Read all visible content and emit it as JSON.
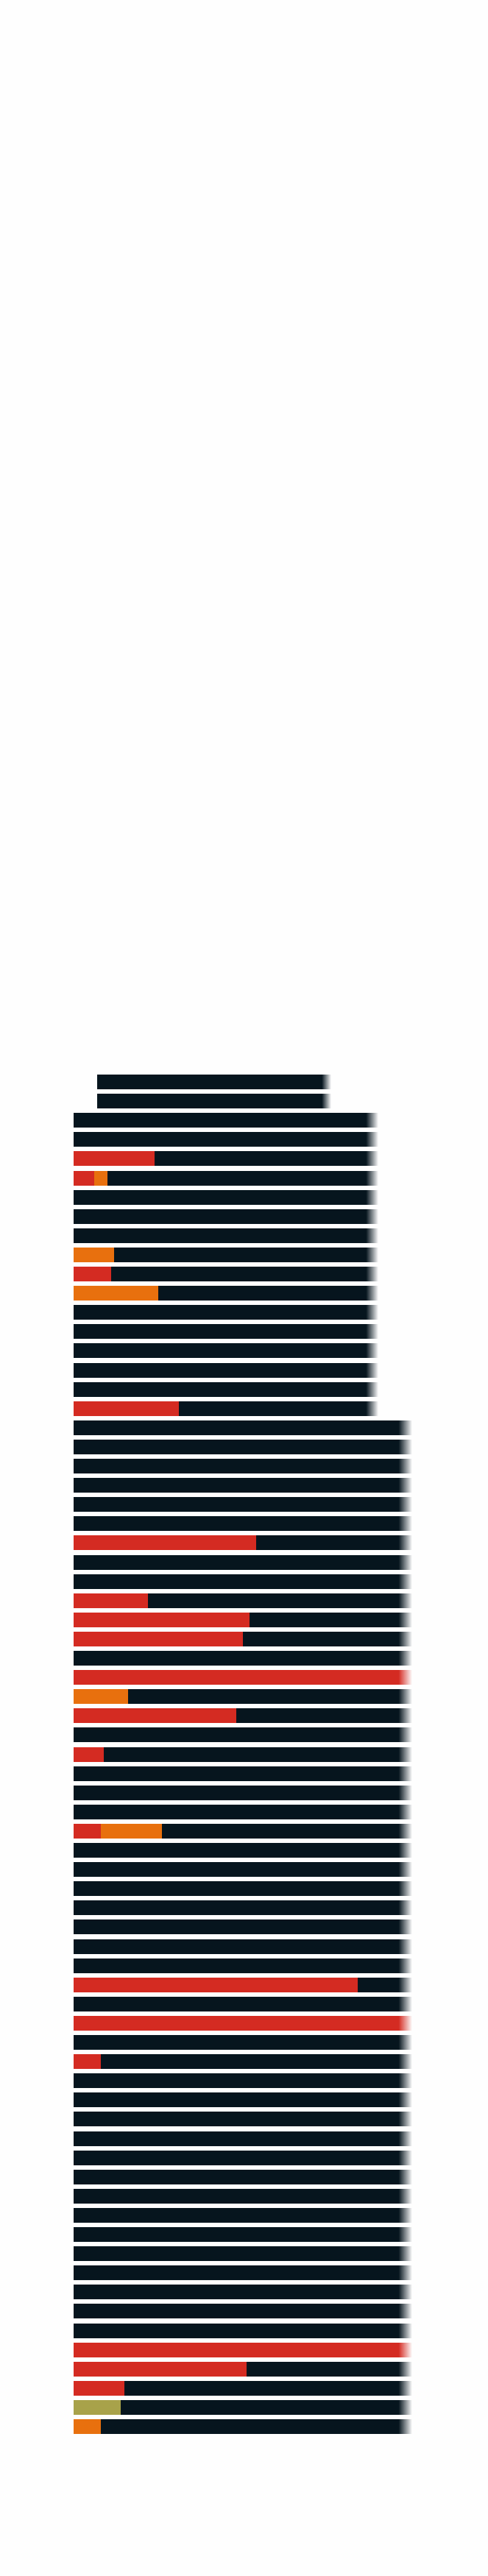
{
  "chart_data": {
    "type": "bar",
    "orientation": "horizontal",
    "stacked": true,
    "grid": false,
    "legend": "none",
    "colors": {
      "background": "#fefefe",
      "base": "#06151e",
      "red": "#d42b22",
      "orange": "#e8700e",
      "olive": "#a8a24a"
    },
    "series_colors": [
      "red",
      "orange",
      "olive"
    ],
    "xlim": [
      0,
      100
    ],
    "rows": [
      {
        "total": 76,
        "offset": 7,
        "segments": []
      },
      {
        "total": 76,
        "offset": 7,
        "segments": []
      },
      {
        "total": 90,
        "offset": 0,
        "segments": []
      },
      {
        "total": 90,
        "offset": 0,
        "segments": []
      },
      {
        "total": 90,
        "offset": 0,
        "segments": [
          {
            "color": "red",
            "value": 24
          }
        ]
      },
      {
        "total": 90,
        "offset": 0,
        "segments": [
          {
            "color": "red",
            "value": 6
          },
          {
            "color": "orange",
            "value": 4
          }
        ]
      },
      {
        "total": 90,
        "offset": 0,
        "segments": []
      },
      {
        "total": 90,
        "offset": 0,
        "segments": []
      },
      {
        "total": 90,
        "offset": 0,
        "segments": []
      },
      {
        "total": 90,
        "offset": 0,
        "segments": [
          {
            "color": "orange",
            "value": 12
          }
        ]
      },
      {
        "total": 90,
        "offset": 0,
        "segments": [
          {
            "color": "red",
            "value": 11
          }
        ]
      },
      {
        "total": 90,
        "offset": 0,
        "segments": [
          {
            "color": "orange",
            "value": 25
          }
        ]
      },
      {
        "total": 90,
        "offset": 0,
        "segments": []
      },
      {
        "total": 90,
        "offset": 0,
        "segments": []
      },
      {
        "total": 90,
        "offset": 0,
        "segments": []
      },
      {
        "total": 90,
        "offset": 0,
        "segments": []
      },
      {
        "total": 90,
        "offset": 0,
        "segments": []
      },
      {
        "total": 90,
        "offset": 0,
        "segments": [
          {
            "color": "red",
            "value": 31
          }
        ]
      },
      {
        "total": 100,
        "offset": 0,
        "segments": []
      },
      {
        "total": 100,
        "offset": 0,
        "segments": []
      },
      {
        "total": 100,
        "offset": 0,
        "segments": []
      },
      {
        "total": 100,
        "offset": 0,
        "segments": []
      },
      {
        "total": 100,
        "offset": 0,
        "segments": []
      },
      {
        "total": 100,
        "offset": 0,
        "segments": []
      },
      {
        "total": 100,
        "offset": 0,
        "segments": [
          {
            "color": "red",
            "value": 54
          }
        ]
      },
      {
        "total": 100,
        "offset": 0,
        "segments": []
      },
      {
        "total": 100,
        "offset": 0,
        "segments": []
      },
      {
        "total": 100,
        "offset": 0,
        "segments": [
          {
            "color": "red",
            "value": 22
          }
        ]
      },
      {
        "total": 100,
        "offset": 0,
        "segments": [
          {
            "color": "red",
            "value": 52
          }
        ]
      },
      {
        "total": 100,
        "offset": 0,
        "segments": [
          {
            "color": "red",
            "value": 50
          }
        ]
      },
      {
        "total": 100,
        "offset": 0,
        "segments": []
      },
      {
        "total": 100,
        "offset": 0,
        "segments": [
          {
            "color": "red",
            "value": 100
          }
        ]
      },
      {
        "total": 100,
        "offset": 0,
        "segments": [
          {
            "color": "orange",
            "value": 16
          }
        ]
      },
      {
        "total": 100,
        "offset": 0,
        "segments": [
          {
            "color": "red",
            "value": 48
          }
        ]
      },
      {
        "total": 100,
        "offset": 0,
        "segments": []
      },
      {
        "total": 100,
        "offset": 0,
        "segments": [
          {
            "color": "red",
            "value": 9
          }
        ]
      },
      {
        "total": 100,
        "offset": 0,
        "segments": []
      },
      {
        "total": 100,
        "offset": 0,
        "segments": []
      },
      {
        "total": 100,
        "offset": 0,
        "segments": []
      },
      {
        "total": 100,
        "offset": 0,
        "segments": [
          {
            "color": "red",
            "value": 8
          },
          {
            "color": "orange",
            "value": 18
          }
        ]
      },
      {
        "total": 100,
        "offset": 0,
        "segments": []
      },
      {
        "total": 100,
        "offset": 0,
        "segments": []
      },
      {
        "total": 100,
        "offset": 0,
        "segments": []
      },
      {
        "total": 100,
        "offset": 0,
        "segments": []
      },
      {
        "total": 100,
        "offset": 0,
        "segments": []
      },
      {
        "total": 100,
        "offset": 0,
        "segments": []
      },
      {
        "total": 100,
        "offset": 0,
        "segments": []
      },
      {
        "total": 100,
        "offset": 0,
        "segments": [
          {
            "color": "red",
            "value": 84
          }
        ]
      },
      {
        "total": 100,
        "offset": 0,
        "segments": []
      },
      {
        "total": 100,
        "offset": 0,
        "segments": [
          {
            "color": "red",
            "value": 100
          }
        ]
      },
      {
        "total": 100,
        "offset": 0,
        "segments": []
      },
      {
        "total": 100,
        "offset": 0,
        "segments": [
          {
            "color": "red",
            "value": 8
          }
        ]
      },
      {
        "total": 100,
        "offset": 0,
        "segments": []
      },
      {
        "total": 100,
        "offset": 0,
        "segments": []
      },
      {
        "total": 100,
        "offset": 0,
        "segments": []
      },
      {
        "total": 100,
        "offset": 0,
        "segments": []
      },
      {
        "total": 100,
        "offset": 0,
        "segments": []
      },
      {
        "total": 100,
        "offset": 0,
        "segments": []
      },
      {
        "total": 100,
        "offset": 0,
        "segments": []
      },
      {
        "total": 100,
        "offset": 0,
        "segments": []
      },
      {
        "total": 100,
        "offset": 0,
        "segments": []
      },
      {
        "total": 100,
        "offset": 0,
        "segments": []
      },
      {
        "total": 100,
        "offset": 0,
        "segments": []
      },
      {
        "total": 100,
        "offset": 0,
        "segments": []
      },
      {
        "total": 100,
        "offset": 0,
        "segments": []
      },
      {
        "total": 100,
        "offset": 0,
        "segments": []
      },
      {
        "total": 100,
        "offset": 0,
        "segments": [
          {
            "color": "red",
            "value": 100
          }
        ]
      },
      {
        "total": 100,
        "offset": 0,
        "segments": [
          {
            "color": "red",
            "value": 51
          }
        ]
      },
      {
        "total": 100,
        "offset": 0,
        "segments": [
          {
            "color": "red",
            "value": 15
          }
        ]
      },
      {
        "total": 100,
        "offset": 0,
        "segments": [
          {
            "color": "olive",
            "value": 14
          }
        ]
      },
      {
        "total": 100,
        "offset": 0,
        "segments": [
          {
            "color": "orange",
            "value": 8
          }
        ]
      }
    ]
  }
}
